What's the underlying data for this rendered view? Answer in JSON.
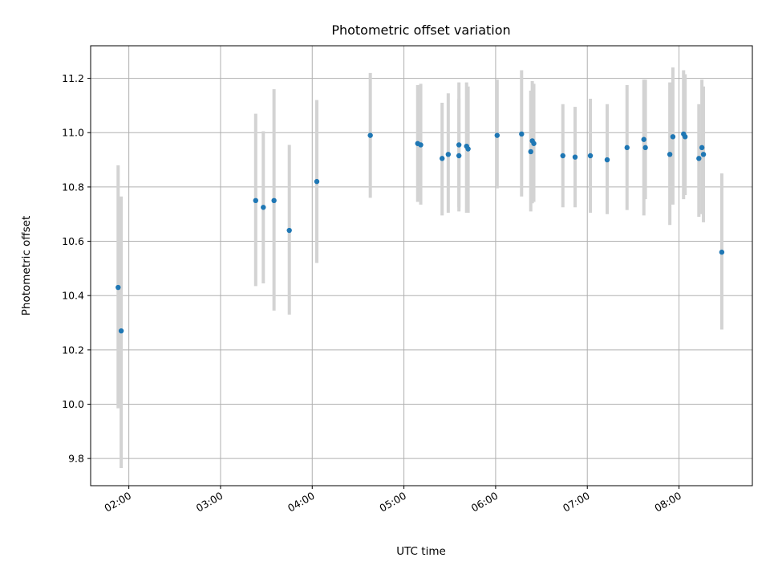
{
  "chart_data": {
    "type": "scatter",
    "title": "Photometric offset variation",
    "xlabel": "UTC time",
    "ylabel": "Photometric offset",
    "xlim": [
      "01:35",
      "08:48"
    ],
    "ylim": [
      9.7,
      11.32
    ],
    "grid": true,
    "x_ticks": [
      "02:00",
      "03:00",
      "04:00",
      "05:00",
      "06:00",
      "07:00",
      "08:00"
    ],
    "y_ticks": [
      "9.8",
      "10.0",
      "10.2",
      "10.4",
      "10.6",
      "10.8",
      "11.0",
      "11.2"
    ],
    "colors": {
      "point": "#1f77b4",
      "errorbar": "#d3d3d3",
      "grid": "#b0b0b0"
    },
    "series": [
      {
        "x": [
          "01:53",
          "01:55",
          "03:23",
          "03:28",
          "03:35",
          "03:45",
          "04:03",
          "04:38",
          "05:09",
          "05:11",
          "05:25",
          "05:29",
          "05:36",
          "05:36",
          "05:41",
          "05:42",
          "06:01",
          "06:17",
          "06:23",
          "06:24",
          "06:25",
          "06:44",
          "06:52",
          "07:02",
          "07:13",
          "07:26",
          "07:37",
          "07:38",
          "07:54",
          "07:56",
          "08:03",
          "08:04",
          "08:13",
          "08:15",
          "08:16",
          "08:28"
        ],
        "y": [
          10.43,
          10.27,
          10.75,
          10.725,
          10.75,
          10.64,
          10.82,
          10.99,
          10.96,
          10.955,
          10.905,
          10.92,
          10.955,
          10.915,
          10.95,
          10.94,
          10.99,
          10.995,
          10.93,
          10.97,
          10.96,
          10.915,
          10.91,
          10.915,
          10.9,
          10.945,
          10.975,
          10.945,
          10.92,
          10.985,
          10.995,
          10.985,
          10.905,
          10.945,
          10.92,
          10.56
        ],
        "y_lower": [
          9.985,
          9.765,
          10.435,
          10.445,
          10.345,
          10.33,
          10.52,
          10.76,
          10.745,
          10.735,
          10.695,
          10.705,
          10.725,
          10.71,
          10.705,
          10.705,
          10.795,
          10.765,
          10.71,
          10.74,
          10.745,
          10.725,
          10.725,
          10.705,
          10.7,
          10.715,
          10.695,
          10.755,
          10.66,
          10.735,
          10.755,
          10.77,
          10.69,
          10.7,
          10.67,
          10.275
        ],
        "y_upper": [
          10.88,
          10.765,
          11.07,
          11.005,
          11.16,
          10.955,
          11.12,
          11.22,
          11.175,
          11.18,
          11.11,
          11.145,
          11.185,
          11.125,
          11.185,
          11.17,
          11.195,
          11.23,
          11.155,
          11.19,
          11.18,
          11.105,
          11.095,
          11.125,
          11.105,
          11.175,
          11.195,
          11.195,
          11.185,
          11.24,
          11.23,
          11.215,
          11.105,
          11.195,
          11.17,
          10.85
        ]
      }
    ]
  }
}
